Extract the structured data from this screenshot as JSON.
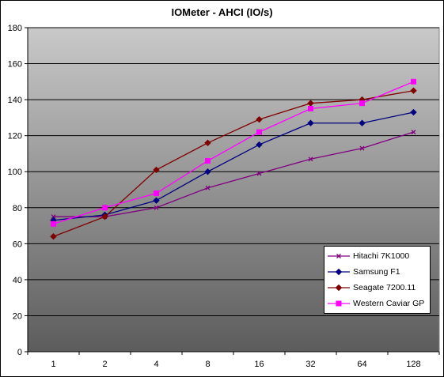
{
  "chart_data": {
    "type": "line",
    "title": "IOMeter - AHCI (IO/s)",
    "categories": [
      "1",
      "2",
      "4",
      "8",
      "16",
      "32",
      "64",
      "128"
    ],
    "ylim": [
      0,
      180
    ],
    "yticks": [
      0,
      20,
      40,
      60,
      80,
      100,
      120,
      140,
      160,
      180
    ],
    "grid": true,
    "legend_position": "bottom-right",
    "series": [
      {
        "name": "Hitachi 7K1000",
        "color": "#800080",
        "marker": "x",
        "values": [
          75,
          75,
          80,
          91,
          99,
          107,
          113,
          122
        ]
      },
      {
        "name": "Samsung F1",
        "color": "#000080",
        "marker": "diamond",
        "values": [
          73,
          76,
          84,
          100,
          115,
          127,
          127,
          133
        ]
      },
      {
        "name": "Seagate 7200.11",
        "color": "#800000",
        "marker": "diamond",
        "values": [
          64,
          75,
          101,
          116,
          129,
          138,
          140,
          145
        ]
      },
      {
        "name": "Western Caviar GP",
        "color": "#ff00ff",
        "marker": "square",
        "values": [
          71,
          80,
          88,
          106,
          122,
          135,
          138,
          150
        ]
      }
    ]
  }
}
